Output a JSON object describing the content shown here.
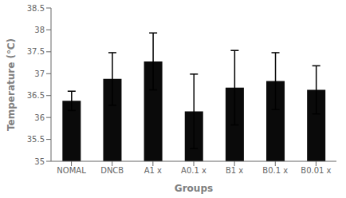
{
  "chart_data": {
    "type": "bar",
    "categories": [
      "NOMAL",
      "DNCB",
      "A1 x",
      "A0.1 x",
      "B1 x",
      "B0.1 x",
      "B0.01 x"
    ],
    "values": [
      36.38,
      36.88,
      37.28,
      36.14,
      36.68,
      36.83,
      36.63
    ],
    "errors": [
      0.22,
      0.6,
      0.65,
      0.85,
      0.85,
      0.65,
      0.55
    ],
    "color": "#0a0a0a",
    "xlabel": "Groups",
    "ylabel": "Temperature (℃)",
    "ylim": [
      35,
      38.5
    ],
    "yticks": [
      35,
      35.5,
      36,
      36.5,
      37,
      37.5,
      38,
      38.5
    ],
    "grid": false
  }
}
